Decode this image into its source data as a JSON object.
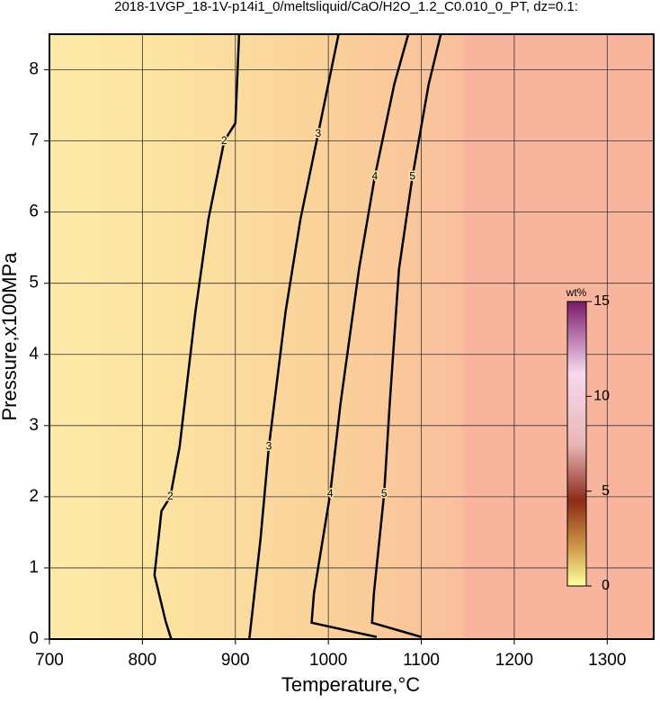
{
  "chart_data": {
    "type": "contour",
    "title": "2018-1VGP_18-1V-p14i1_0/meltsliquid/CaO/H2O_1.2_C0.010_0_PT, dz=0.1:",
    "x_label": "Temperature,°C",
    "y_label": "Pressure,x100MPa",
    "xlim": [
      700,
      1350
    ],
    "ylim": [
      0,
      8.5
    ],
    "xticks": [
      700,
      800,
      900,
      1000,
      1100,
      1200,
      1300
    ],
    "yticks": [
      0,
      1,
      2,
      3,
      4,
      5,
      6,
      7,
      8
    ],
    "grid": true,
    "contours": [
      {
        "level": 2,
        "x": [
          831,
          825,
          813,
          820.5,
          830,
          840,
          857,
          871,
          888,
          900,
          904
        ],
        "y": [
          0,
          0.25,
          0.9,
          1.8,
          2.0,
          2.7,
          4.6,
          5.9,
          7.0,
          7.25,
          8.5
        ]
      },
      {
        "level": 3,
        "x": [
          915,
          927,
          936,
          954,
          970,
          989,
          1011
        ],
        "y": [
          0,
          1.4,
          2.7,
          4.6,
          5.9,
          7.1,
          8.5
        ]
      },
      {
        "level": 4,
        "x": [
          1052,
          982,
          984.5,
          1002,
          1013,
          1033,
          1050,
          1071,
          1086
        ],
        "y": [
          0.03,
          0.23,
          0.64,
          2.04,
          3.3,
          5.2,
          6.5,
          7.8,
          8.5
        ]
      },
      {
        "level": 5,
        "x": [
          1100,
          1047,
          1049,
          1060,
          1066,
          1076,
          1090.5,
          1108,
          1121
        ],
        "y": [
          0.03,
          0.23,
          0.64,
          2.04,
          3.3,
          5.2,
          6.5,
          7.8,
          8.5
        ]
      }
    ],
    "colorbar": {
      "label": "wt%",
      "lim": [
        0,
        15
      ],
      "ticks": [
        0,
        5,
        10,
        15
      ]
    }
  }
}
